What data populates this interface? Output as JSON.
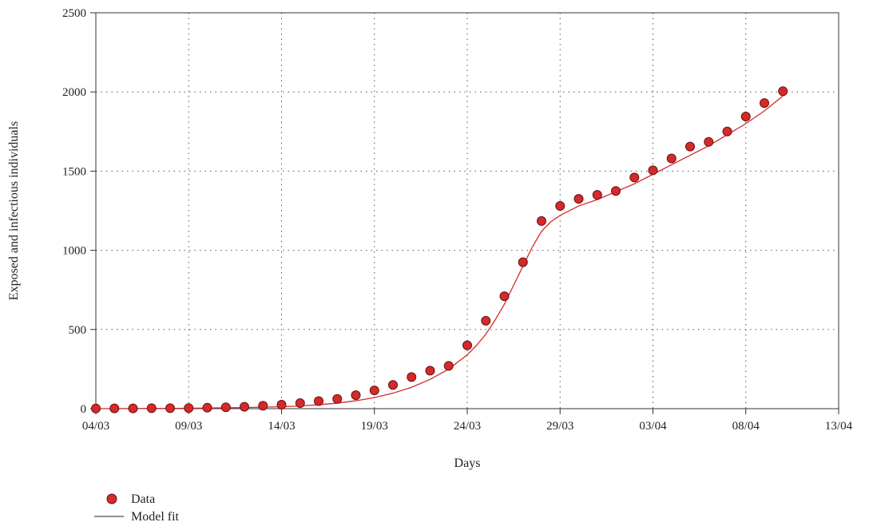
{
  "chart_data": {
    "type": "scatter",
    "title": "",
    "xlabel": "Days",
    "ylabel": "Exposed and infectious individuals",
    "x_tick_labels": [
      "04/03",
      "09/03",
      "14/03",
      "19/03",
      "24/03",
      "29/03",
      "03/04",
      "08/04",
      "13/04"
    ],
    "x_tick_days": [
      0,
      5,
      10,
      15,
      20,
      25,
      30,
      35,
      40
    ],
    "y_ticks": [
      0,
      500,
      1000,
      1500,
      2000,
      2500
    ],
    "xlim": [
      0,
      40
    ],
    "ylim": [
      0,
      2500
    ],
    "grid": "dotted",
    "legend_position": "bottom-left",
    "series": [
      {
        "name": "Data",
        "kind": "markers",
        "color": "#d42a2a",
        "x": [
          0,
          1,
          2,
          3,
          4,
          5,
          6,
          7,
          8,
          9,
          10,
          11,
          12,
          13,
          14,
          15,
          16,
          17,
          18,
          19,
          20,
          21,
          22,
          23,
          24,
          25,
          26,
          27,
          28,
          29,
          30,
          31,
          32,
          33,
          34,
          35,
          36,
          37
        ],
        "y": [
          1,
          2,
          2,
          3,
          3,
          4,
          6,
          9,
          12,
          18,
          25,
          35,
          48,
          62,
          85,
          115,
          150,
          200,
          240,
          270,
          400,
          555,
          710,
          925,
          1185,
          1280,
          1325,
          1350,
          1375,
          1460,
          1505,
          1580,
          1655,
          1685,
          1750,
          1845,
          1930,
          2005
        ]
      },
      {
        "name": "Model fit",
        "kind": "line",
        "color": "#d42a2a",
        "x": [
          0,
          2,
          4,
          6,
          8,
          10,
          11,
          12,
          13,
          14,
          15,
          16,
          17,
          18,
          19,
          20,
          20.5,
          21,
          21.5,
          22,
          22.5,
          23,
          23.5,
          24,
          24.5,
          25,
          26,
          27,
          28,
          29,
          30,
          31,
          32,
          33,
          34,
          35,
          36,
          37
        ],
        "y": [
          0,
          1,
          2,
          4,
          7,
          12,
          17,
          25,
          35,
          50,
          70,
          98,
          135,
          185,
          250,
          340,
          400,
          470,
          560,
          660,
          780,
          900,
          1020,
          1120,
          1180,
          1220,
          1280,
          1320,
          1370,
          1420,
          1480,
          1540,
          1600,
          1660,
          1730,
          1800,
          1880,
          1975
        ]
      }
    ]
  }
}
